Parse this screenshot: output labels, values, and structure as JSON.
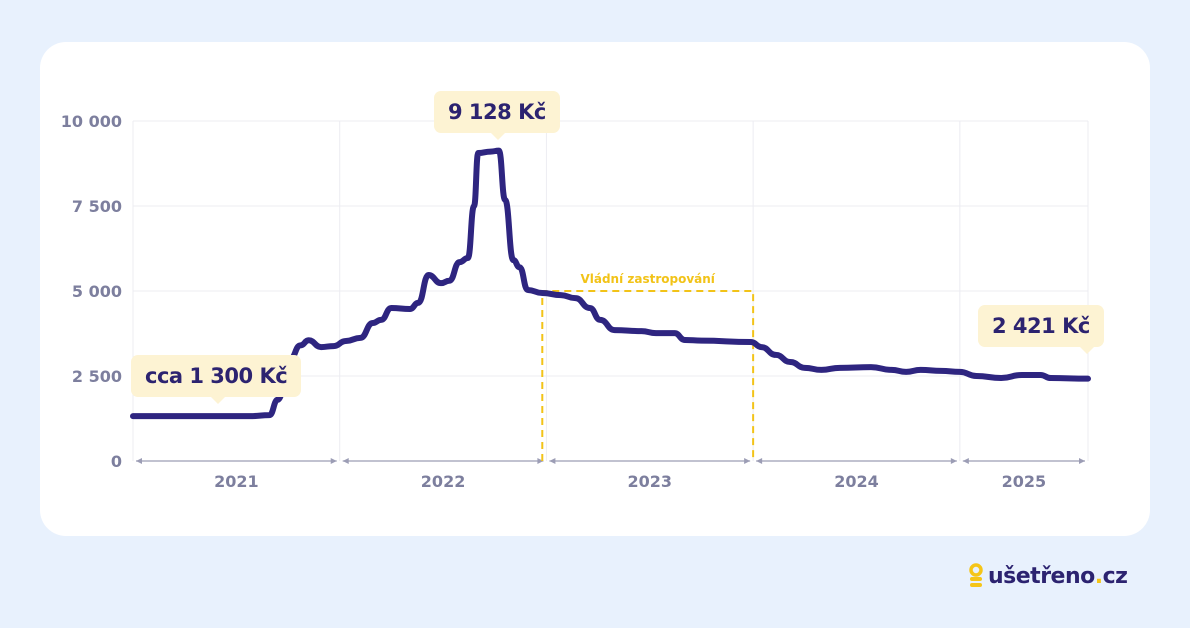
{
  "chart_data": {
    "type": "line",
    "xlabel": "",
    "ylabel": "",
    "ylim": [
      0,
      10000
    ],
    "xlim": [
      2021.0,
      2025.62
    ],
    "y_ticks": [
      {
        "value": 0,
        "label": "0"
      },
      {
        "value": 2500,
        "label": "2 500"
      },
      {
        "value": 5000,
        "label": "5 000"
      },
      {
        "value": 7500,
        "label": "7 500"
      },
      {
        "value": 10000,
        "label": "10 000"
      }
    ],
    "x_ticks": [
      {
        "from": 2021.0,
        "to": 2022.0,
        "label": "2021"
      },
      {
        "from": 2022.0,
        "to": 2023.0,
        "label": "2022"
      },
      {
        "from": 2023.0,
        "to": 2024.0,
        "label": "2023"
      },
      {
        "from": 2024.0,
        "to": 2025.0,
        "label": "2024"
      },
      {
        "from": 2025.0,
        "to": 2025.62,
        "label": "2025"
      }
    ],
    "grid": true,
    "line_color": "#2e2580",
    "series": [
      {
        "x": [
          2021.0,
          2021.32,
          2021.57,
          2021.66,
          2021.7,
          2021.76,
          2021.81,
          2021.85,
          2021.91,
          2021.97,
          2022.03,
          2022.1,
          2022.16,
          2022.2,
          2022.25,
          2022.34,
          2022.38,
          2022.43,
          2022.49,
          2022.53,
          2022.58,
          2022.62,
          2022.65,
          2022.67,
          2022.73,
          2022.77,
          2022.8,
          2022.84,
          2022.87,
          2022.91,
          2022.98,
          2023.07,
          2023.14,
          2023.21,
          2023.26,
          2023.33,
          2023.46,
          2023.53,
          2023.62,
          2023.67,
          2023.75,
          2023.99,
          2024.04,
          2024.11,
          2024.18,
          2024.25,
          2024.33,
          2024.42,
          2024.57,
          2024.67,
          2024.74,
          2024.81,
          2024.91,
          2025.0,
          2025.08,
          2025.2,
          2025.3,
          2025.39,
          2025.44,
          2025.62
        ],
        "y": [
          1320,
          1320,
          1320,
          1350,
          1800,
          3000,
          3400,
          3550,
          3350,
          3380,
          3530,
          3620,
          4060,
          4150,
          4500,
          4470,
          4650,
          5470,
          5230,
          5300,
          5850,
          5970,
          7500,
          9060,
          9100,
          9128,
          7680,
          5910,
          5700,
          5030,
          4940,
          4880,
          4790,
          4500,
          4150,
          3850,
          3820,
          3760,
          3760,
          3560,
          3540,
          3500,
          3350,
          3120,
          2910,
          2740,
          2680,
          2740,
          2760,
          2680,
          2620,
          2680,
          2650,
          2620,
          2500,
          2440,
          2530,
          2530,
          2440,
          2421
        ]
      }
    ],
    "annotations": [
      {
        "text": "cca 1 300 Kč",
        "x": 2021.42,
        "y": 1320
      },
      {
        "text": "9 128 Kč",
        "x": 2022.77,
        "y": 9128
      },
      {
        "text": "2 421 Kč",
        "x": 2025.62,
        "y": 2421
      }
    ],
    "highlight_region": {
      "label": "Vládní zastropování",
      "x_from": 2022.98,
      "x_to": 2024.0,
      "y_to": 5000,
      "color": "#f2c318"
    }
  },
  "logo": {
    "text_main": "ušetřeno",
    "text_dot": ".",
    "text_tld": "cz",
    "accent": "#f5c518"
  }
}
